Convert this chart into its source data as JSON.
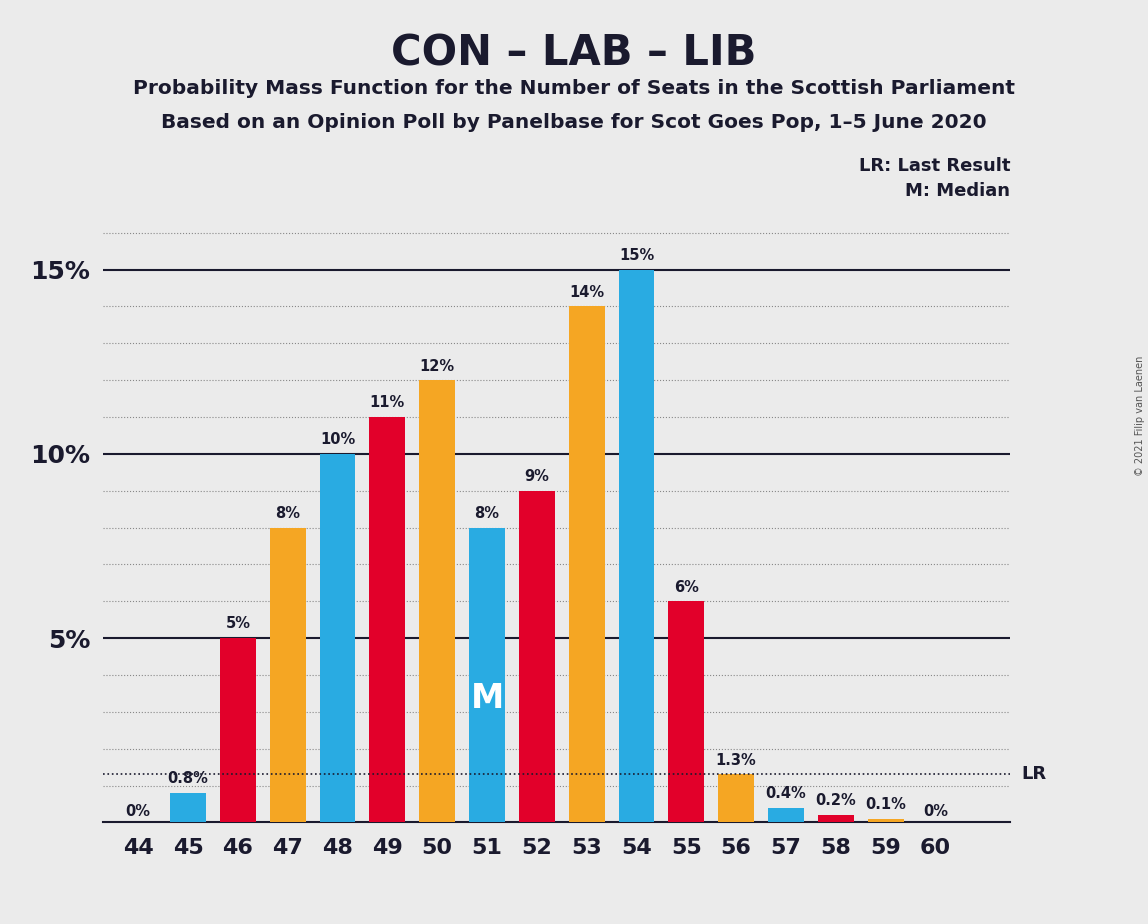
{
  "title": "CON – LAB – LIB",
  "subtitle1": "Probability Mass Function for the Number of Seats in the Scottish Parliament",
  "subtitle2": "Based on an Opinion Poll by Panelbase for Scot Goes Pop, 1–5 June 2020",
  "copyright": "© 2021 Filip van Laenen",
  "seats": [
    44,
    45,
    46,
    47,
    48,
    49,
    50,
    51,
    52,
    53,
    54,
    55,
    56,
    57,
    58,
    59,
    60
  ],
  "values": [
    0.0,
    0.8,
    5.0,
    8.0,
    10.0,
    11.0,
    12.0,
    8.0,
    9.0,
    14.0,
    15.0,
    6.0,
    1.3,
    0.4,
    0.2,
    0.1,
    0.0
  ],
  "labels": [
    "0%",
    "0.8%",
    "5%",
    "8%",
    "10%",
    "11%",
    "12%",
    "8%",
    "9%",
    "14%",
    "15%",
    "6%",
    "1.3%",
    "0.4%",
    "0.2%",
    "0.1%",
    "0%"
  ],
  "colors": [
    "#29ABE2",
    "#29ABE2",
    "#E2002A",
    "#F5A623",
    "#29ABE2",
    "#E2002A",
    "#F5A623",
    "#29ABE2",
    "#E2002A",
    "#F5A623",
    "#29ABE2",
    "#E2002A",
    "#F5A623",
    "#29ABE2",
    "#E2002A",
    "#F5A623",
    "#29ABE2"
  ],
  "median_seat": 51,
  "lr_value": 1.3,
  "background_color": "#EBEBEB",
  "ylim": [
    0,
    16.8
  ],
  "bar_width": 0.72
}
